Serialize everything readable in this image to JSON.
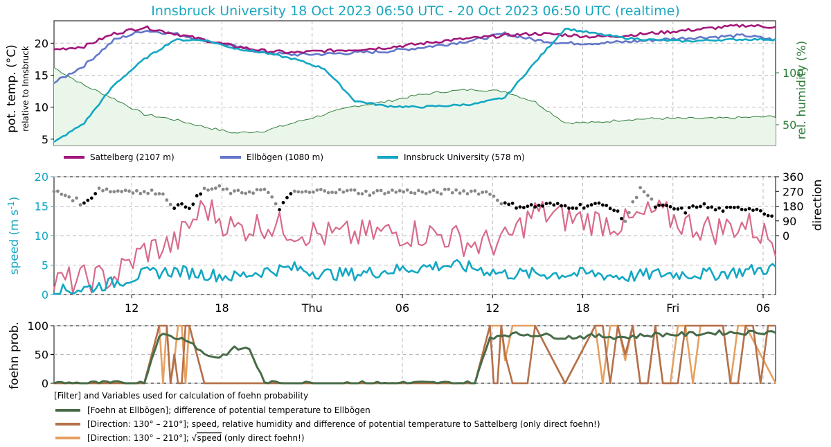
{
  "title": "Innsbruck University 18 Oct 2023 06:50 UTC - 20 Oct 2023 06:50 UTC (realtime)",
  "colors": {
    "title": "#1aa7c0",
    "sattelberg": "#a3177a",
    "ellboegen": "#6377c9",
    "innsbruck": "#12a7c3",
    "humidity": "#2f7d3a",
    "humidity_fill": "#eaf6ea",
    "gust": "#d86a8a",
    "speed": "#12a7c3",
    "dir_foehn": "#000000",
    "dir_other": "#888888",
    "foehn_ellb": "#476b47",
    "foehn_dir_satt": "#b4704a",
    "foehn_dir_sqrt": "#e6a060"
  },
  "xaxis": {
    "ticks": [
      "12",
      "18",
      "Thu",
      "06",
      "12",
      "18",
      "Fri",
      "06"
    ],
    "tick_hours": [
      5.17,
      11.17,
      17.17,
      23.17,
      29.17,
      35.17,
      41.17,
      47.17
    ],
    "range_hours": [
      0,
      48
    ]
  },
  "panels": {
    "temp": {
      "ylabel": "pot. temp. (°C)",
      "ylabel_sub": "relative to Innsbruck",
      "yticks": [
        "5",
        "10",
        "15",
        "20"
      ],
      "y2label": "rel. humidity (%)",
      "y2ticks": [
        "50",
        "100"
      ],
      "legend": [
        {
          "label": "Sattelberg (2107 m)",
          "key": "sattelberg"
        },
        {
          "label": "Ellbögen (1080 m)",
          "key": "ellboegen"
        },
        {
          "label": "Innsbruck University (578 m)",
          "key": "innsbruck"
        }
      ]
    },
    "wind": {
      "ylabel": "speed (m s",
      "ylabel_exp": "-1",
      "ylabel_close": ")",
      "yticks": [
        "0",
        "5",
        "10",
        "15",
        "20"
      ],
      "y2label": "direction",
      "y2ticks": [
        "0",
        "90",
        "180",
        "270",
        "360"
      ]
    },
    "foehn": {
      "ylabel": "foehn prob.",
      "yticks": [
        "0",
        "50",
        "100"
      ],
      "legend_title": "[Filter] and Variables used for calculation of foehn probability",
      "legend": [
        {
          "label": "[Foehn at Ellbögen]; difference of potential temperature to Ellbögen",
          "key": "foehn_ellb"
        },
        {
          "label": "[Direction:  130° – 210°]; speed, relative humidity and difference of potential temperature to Sattelberg (only direct foehn!)",
          "key": "foehn_dir_satt"
        },
        {
          "label_pre": "[Direction:  130° – 210°]; ",
          "label_sqrt": "speed",
          "label_post": " (only direct foehn!)",
          "key": "foehn_dir_sqrt"
        }
      ]
    }
  },
  "chart_data": [
    {
      "type": "line",
      "title": "Innsbruck University 18 Oct 2023 06:50 UTC - 20 Oct 2023 06:50 UTC (realtime)",
      "xlabel": "",
      "ylabel": "pot. temp. (°C)",
      "y2label": "rel. humidity (%)",
      "ylim": [
        4,
        23.5
      ],
      "y2lim": [
        30,
        150
      ],
      "x_hours_since_start": [
        0,
        2,
        4,
        6,
        8,
        10,
        12,
        14,
        16,
        18,
        20,
        22,
        24,
        26,
        28,
        30,
        32,
        34,
        36,
        38,
        40,
        42,
        44,
        46,
        48
      ],
      "series": [
        {
          "name": "Sattelberg (2107 m)",
          "axis": "left",
          "values": [
            19,
            19.5,
            21.5,
            22.5,
            21.5,
            20.5,
            19.5,
            18.8,
            18.5,
            18.8,
            19,
            19.3,
            19.8,
            20.4,
            20.8,
            21.2,
            21.5,
            21.3,
            21,
            21.2,
            21.6,
            22,
            22.4,
            22.8,
            22.5
          ]
        },
        {
          "name": "Ellbögen (1080 m)",
          "axis": "left",
          "values": [
            13.8,
            16.5,
            20.5,
            22,
            21.5,
            20.5,
            19.5,
            18.5,
            18.2,
            18.3,
            18.5,
            18.7,
            19.2,
            19.8,
            20.5,
            21.5,
            20.5,
            20,
            20,
            20.2,
            20.5,
            20.8,
            21,
            21.2,
            20.5
          ]
        },
        {
          "name": "Innsbruck University (578 m)",
          "axis": "left",
          "values": [
            4.5,
            7.5,
            13.5,
            17.5,
            20.5,
            20.5,
            19.2,
            18.5,
            17.5,
            16,
            11,
            10.2,
            10,
            10.2,
            10.5,
            11.5,
            17,
            22.3,
            21.5,
            20.8,
            20.5,
            20.3,
            20.5,
            20.6,
            20.6
          ]
        },
        {
          "name": "",
          "axis": "right",
          "values": [
            105,
            88,
            75,
            60,
            55,
            48,
            42,
            44,
            52,
            60,
            68,
            72,
            78,
            82,
            84,
            82,
            72,
            52,
            52,
            55,
            56,
            56,
            56,
            57,
            58
          ]
        }
      ]
    },
    {
      "type": "line",
      "ylabel": "speed (m s-1)",
      "y2label": "direction",
      "ylim": [
        0,
        20
      ],
      "y2lim": [
        0,
        360
      ],
      "x_hours_since_start": [
        0,
        2,
        4,
        6,
        8,
        10,
        12,
        14,
        16,
        18,
        20,
        22,
        24,
        26,
        28,
        30,
        32,
        34,
        36,
        38,
        40,
        42,
        44,
        46,
        48
      ],
      "series": [
        {
          "name": "",
          "kind": "gust",
          "values": [
            2,
            2.5,
            3,
            7.5,
            8.5,
            15,
            11,
            12,
            11,
            10,
            10,
            10.5,
            10.5,
            10,
            8.5,
            9,
            14,
            13,
            12.5,
            12,
            14,
            12,
            11,
            12,
            9
          ]
        },
        {
          "name": "",
          "kind": "mean speed",
          "values": [
            0.5,
            1,
            2,
            3.5,
            4,
            3.5,
            3,
            4,
            4.5,
            3.5,
            3.5,
            4,
            4.5,
            5,
            4.5,
            3.5,
            3.5,
            3.5,
            3.5,
            3,
            3.5,
            3.5,
            3.5,
            4,
            4.5
          ]
        }
      ],
      "direction_deg": {
        "hours": [
          0,
          1,
          2,
          3,
          4,
          5,
          6,
          7,
          8,
          9,
          10,
          11,
          12,
          13,
          14,
          15,
          16,
          17,
          18,
          19,
          20,
          21,
          22,
          23,
          24,
          25,
          26,
          27,
          28,
          29,
          30,
          31,
          32,
          33,
          34,
          35,
          36,
          37,
          38,
          39,
          40,
          41,
          42,
          43,
          44,
          45,
          46,
          47,
          48
        ],
        "values": [
          270,
          240,
          190,
          290,
          270,
          280,
          260,
          270,
          180,
          180,
          280,
          290,
          260,
          270,
          280,
          170,
          270,
          260,
          280,
          270,
          270,
          260,
          270,
          270,
          270,
          260,
          270,
          270,
          270,
          260,
          190,
          180,
          180,
          190,
          180,
          180,
          190,
          180,
          90,
          300,
          180,
          170,
          150,
          190,
          160,
          160,
          170,
          160,
          100
        ],
        "foehn_filter": [
          false,
          false,
          true,
          false,
          false,
          false,
          false,
          false,
          true,
          true,
          false,
          false,
          false,
          false,
          false,
          true,
          false,
          false,
          false,
          false,
          false,
          false,
          false,
          false,
          false,
          false,
          false,
          false,
          false,
          false,
          true,
          true,
          true,
          true,
          true,
          true,
          true,
          true,
          false,
          false,
          true,
          true,
          true,
          true,
          true,
          true,
          true,
          true,
          false
        ]
      }
    },
    {
      "type": "line",
      "ylabel": "foehn prob.",
      "ylim": [
        0,
        100
      ],
      "x_hours_since_start": [
        0,
        2,
        4,
        6,
        7,
        8,
        9,
        10,
        11,
        12,
        13,
        14,
        15,
        16,
        18,
        20,
        22,
        24,
        26,
        28,
        29,
        30,
        32,
        34,
        36,
        38,
        40,
        42,
        44,
        46,
        48
      ],
      "series": [
        {
          "name": "[Foehn at Ellbögen]; difference of potential temperature to Ellbögen",
          "values": [
            0,
            0,
            0,
            0,
            85,
            80,
            75,
            50,
            45,
            60,
            60,
            0,
            0,
            0,
            0,
            0,
            0,
            0,
            0,
            0,
            80,
            85,
            85,
            80,
            82,
            80,
            85,
            85,
            88,
            88,
            90
          ]
        },
        {
          "name": "[Direction:  130° – 210°]; speed, relative humidity and difference of potential temperature to Sattelberg (only direct foehn!)",
          "values": [
            0,
            0,
            0,
            0,
            100,
            50,
            100,
            0,
            0,
            0,
            0,
            0,
            0,
            0,
            0,
            0,
            0,
            0,
            0,
            0,
            100,
            50,
            100,
            0,
            100,
            50,
            100,
            100,
            100,
            100,
            100
          ]
        },
        {
          "name": "[Direction:  130° – 210°]; √speed (only direct foehn!)",
          "values": [
            0,
            0,
            0,
            0,
            100,
            40,
            100,
            0,
            0,
            0,
            0,
            0,
            0,
            0,
            0,
            0,
            0,
            0,
            0,
            0,
            100,
            40,
            100,
            0,
            100,
            40,
            100,
            100,
            100,
            100,
            0
          ]
        }
      ]
    }
  ]
}
